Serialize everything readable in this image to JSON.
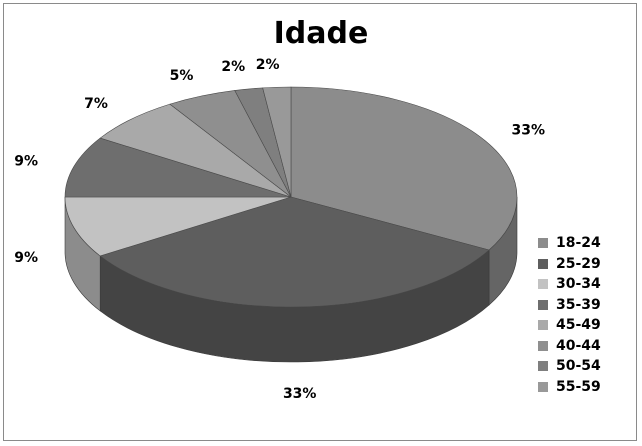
{
  "chart_data": {
    "type": "pie",
    "title": "Idade",
    "labels": [
      "18-24",
      "25-29",
      "30-34",
      "35-39",
      "45-49",
      "40-44",
      "50-54",
      "55-59"
    ],
    "values": [
      33,
      33,
      9,
      9,
      7,
      5,
      2,
      2
    ],
    "data_labels": [
      "33%",
      "33%",
      "9%",
      "9%",
      "7%",
      "5%",
      "2%",
      "2%"
    ],
    "colors": [
      "#8c8c8c",
      "#5e5e5e",
      "#c2c2c2",
      "#6e6e6e",
      "#a9a9a9",
      "#8f8f8f",
      "#7f7f7f",
      "#999999"
    ],
    "legend_position": "right",
    "style": "3d-pie"
  }
}
